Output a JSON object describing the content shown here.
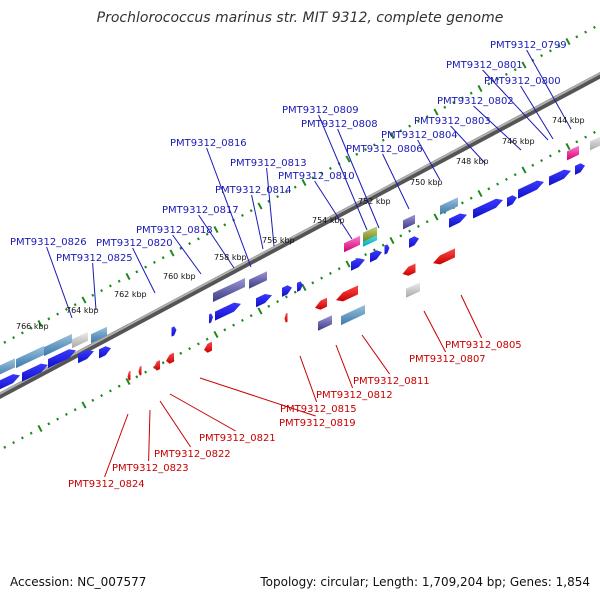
{
  "title": "Prochlorococcus marinus str. MIT 9312, complete genome",
  "footer": {
    "accession": "Accession: NC_007577",
    "stats": "Topology: circular; Length: 1,709,204 bp; Genes: 1,854"
  },
  "colors": {
    "forward": "#1f1fe0",
    "reverse": "#e01010",
    "backbone": "#888888",
    "ticks": "#1a8a1a",
    "label_forward": "#1a1ab4",
    "label_reverse": "#c80000"
  },
  "position_labels": [
    "744 kbp",
    "746 kbp",
    "748 kbp",
    "750 kbp",
    "752 kbp",
    "754 kbp",
    "756 kbp",
    "758 kbp",
    "760 kbp",
    "762 kbp",
    "764 kbp",
    "766 kbp"
  ],
  "forward_labels": [
    "PMT9312_0799",
    "PMT9312_0801",
    "PMT9312_0800",
    "PMT9312_0802",
    "PMT9312_0803",
    "PMT9312_0804",
    "PMT9312_0809",
    "PMT9312_0808",
    "PMT9312_0806",
    "PMT9312_0816",
    "PMT9312_0813",
    "PMT9312_0810",
    "PMT9312_0814",
    "PMT9312_0817",
    "PMT9312_0818",
    "PMT9312_0826",
    "PMT9312_0820",
    "PMT9312_0825"
  ],
  "reverse_labels": [
    "PMT9312_0805",
    "PMT9312_0807",
    "PMT9312_0811",
    "PMT9312_0812",
    "PMT9312_0815",
    "PMT9312_0819",
    "PMT9312_0821",
    "PMT9312_0822",
    "PMT9312_0823",
    "PMT9312_0824"
  ]
}
